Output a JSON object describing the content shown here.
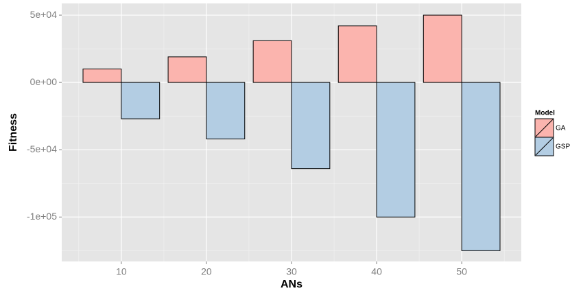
{
  "chart_data": {
    "type": "bar",
    "x_label": "ANs",
    "y_label": "Fitness",
    "x": [
      10,
      20,
      30,
      40,
      50
    ],
    "series": [
      {
        "name": "GA",
        "color": "#fbb4ae",
        "values": [
          10000,
          19000,
          31000,
          42000,
          50000
        ]
      },
      {
        "name": "GSP",
        "color": "#b3cde3",
        "values": [
          -27000,
          -42000,
          -64000,
          -100000,
          -125000
        ]
      }
    ],
    "legend_title": "Model",
    "legend": "right",
    "grid": true,
    "xlim": [
      3,
      57
    ],
    "xticks": [
      10,
      20,
      30,
      40,
      50
    ],
    "ylim": [
      -133000,
      58700
    ],
    "yticks": [
      {
        "value": 50000,
        "label": "5e+04"
      },
      {
        "value": 0,
        "label": "0e+00"
      },
      {
        "value": -50000,
        "label": "-5e+04"
      },
      {
        "value": -100000,
        "label": "-1e+05"
      }
    ]
  }
}
